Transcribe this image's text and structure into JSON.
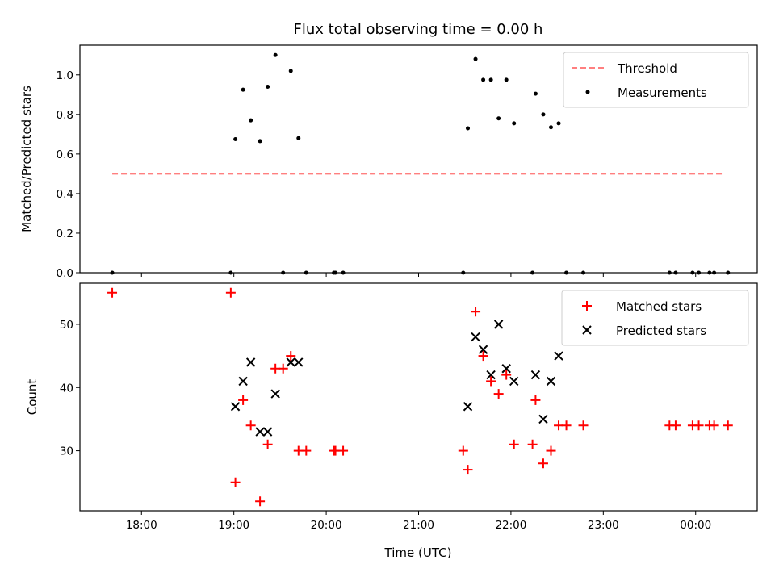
{
  "chart_data": [
    {
      "type": "scatter",
      "title": "Flux total observing time = 0.00 h",
      "xlabel": "",
      "ylabel": "Matched/Predicted stars",
      "ylim": [
        0,
        1.15
      ],
      "yticks": [
        "0.0",
        "0.2",
        "0.4",
        "0.6",
        "0.8",
        "1.0"
      ],
      "ytick_values": [
        0,
        0.2,
        0.4,
        0.6,
        0.8,
        1.0
      ],
      "legend_position": "top-right",
      "legend": [
        {
          "label": "Threshold",
          "kind": "dashed-line",
          "color": "#ff7f7f"
        },
        {
          "label": "Measurements",
          "kind": "dot",
          "color": "#000000"
        }
      ],
      "threshold": {
        "y": 0.5,
        "x_start": "17:41",
        "x_end": "00:19",
        "color": "#ff7f7f"
      },
      "series": [
        {
          "name": "Measurements",
          "color": "#000000",
          "points": [
            [
              "17:41",
              0.0
            ],
            [
              "18:58",
              0.0
            ],
            [
              "19:01",
              0.675
            ],
            [
              "19:06",
              0.925
            ],
            [
              "19:11",
              0.77
            ],
            [
              "19:17",
              0.665
            ],
            [
              "19:22",
              0.94
            ],
            [
              "19:27",
              1.1
            ],
            [
              "19:32",
              0.0
            ],
            [
              "19:37",
              1.02
            ],
            [
              "19:42",
              0.68
            ],
            [
              "19:47",
              0.0
            ],
            [
              "20:05",
              0.0
            ],
            [
              "20:06",
              0.0
            ],
            [
              "20:11",
              0.0
            ],
            [
              "21:29",
              0.0
            ],
            [
              "21:32",
              0.73
            ],
            [
              "21:37",
              1.08
            ],
            [
              "21:42",
              0.975
            ],
            [
              "21:47",
              0.975
            ],
            [
              "21:52",
              0.78
            ],
            [
              "21:57",
              0.975
            ],
            [
              "22:02",
              0.755
            ],
            [
              "22:14",
              0.0
            ],
            [
              "22:16",
              0.905
            ],
            [
              "22:21",
              0.8
            ],
            [
              "22:26",
              0.735
            ],
            [
              "22:31",
              0.755
            ],
            [
              "22:36",
              0.0
            ],
            [
              "22:47",
              0.0
            ],
            [
              "23:43",
              0.0
            ],
            [
              "23:47",
              0.0
            ],
            [
              "23:58",
              0.0
            ],
            [
              "00:02",
              0.0
            ],
            [
              "00:09",
              0.0
            ],
            [
              "00:12",
              0.0
            ],
            [
              "00:21",
              0.0
            ]
          ]
        }
      ]
    },
    {
      "type": "scatter",
      "title": "",
      "xlabel": "Time (UTC)",
      "ylabel": "Count",
      "ylim": [
        20.5,
        56.5
      ],
      "yticks": [
        "30",
        "40",
        "50"
      ],
      "ytick_values": [
        30,
        40,
        50
      ],
      "xticks": [
        "18:00",
        "19:00",
        "20:00",
        "21:00",
        "22:00",
        "23:00",
        "00:00"
      ],
      "xtick_values": [
        "18:00",
        "19:00",
        "20:00",
        "21:00",
        "22:00",
        "23:00",
        "00:00"
      ],
      "legend_position": "top-right",
      "legend": [
        {
          "label": "Matched stars",
          "kind": "plus",
          "color": "#ff0000"
        },
        {
          "label": "Predicted stars",
          "kind": "x",
          "color": "#000000"
        }
      ],
      "series": [
        {
          "name": "Matched stars",
          "marker": "plus",
          "color": "#ff0000",
          "points": [
            [
              "17:41",
              55
            ],
            [
              "18:58",
              55
            ],
            [
              "19:01",
              25
            ],
            [
              "19:06",
              38
            ],
            [
              "19:11",
              34
            ],
            [
              "19:17",
              22
            ],
            [
              "19:22",
              31
            ],
            [
              "19:27",
              43
            ],
            [
              "19:32",
              43
            ],
            [
              "19:37",
              45
            ],
            [
              "19:42",
              30
            ],
            [
              "19:47",
              30
            ],
            [
              "20:05",
              30
            ],
            [
              "20:06",
              30
            ],
            [
              "20:11",
              30
            ],
            [
              "21:29",
              30
            ],
            [
              "21:32",
              27
            ],
            [
              "21:37",
              52
            ],
            [
              "21:42",
              45
            ],
            [
              "21:47",
              41
            ],
            [
              "21:52",
              39
            ],
            [
              "21:57",
              42
            ],
            [
              "22:02",
              31
            ],
            [
              "22:14",
              31
            ],
            [
              "22:16",
              38
            ],
            [
              "22:21",
              28
            ],
            [
              "22:26",
              30
            ],
            [
              "22:31",
              34
            ],
            [
              "22:36",
              34
            ],
            [
              "22:47",
              34
            ],
            [
              "23:43",
              34
            ],
            [
              "23:47",
              34
            ],
            [
              "23:58",
              34
            ],
            [
              "00:02",
              34
            ],
            [
              "00:09",
              34
            ],
            [
              "00:12",
              34
            ],
            [
              "00:21",
              34
            ]
          ]
        },
        {
          "name": "Predicted stars",
          "marker": "x",
          "color": "#000000",
          "points": [
            [
              "19:01",
              37
            ],
            [
              "19:06",
              41
            ],
            [
              "19:11",
              44
            ],
            [
              "19:17",
              33
            ],
            [
              "19:22",
              33
            ],
            [
              "19:27",
              39
            ],
            [
              "19:37",
              44
            ],
            [
              "19:42",
              44
            ],
            [
              "21:32",
              37
            ],
            [
              "21:37",
              48
            ],
            [
              "21:42",
              46
            ],
            [
              "21:47",
              42
            ],
            [
              "21:52",
              50
            ],
            [
              "21:57",
              43
            ],
            [
              "22:02",
              41
            ],
            [
              "22:16",
              42
            ],
            [
              "22:21",
              35
            ],
            [
              "22:26",
              41
            ],
            [
              "22:31",
              45
            ]
          ]
        }
      ]
    }
  ]
}
